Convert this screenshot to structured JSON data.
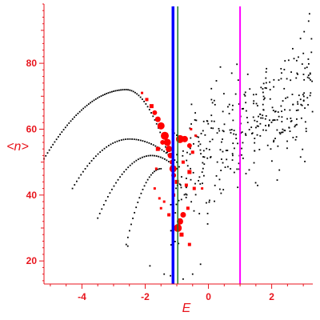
{
  "chart_data": {
    "type": "scatter",
    "title": "",
    "xlabel": "E",
    "ylabel": "<n>",
    "xlim": [
      -5.2,
      3.3
    ],
    "ylim": [
      13,
      98
    ],
    "xticks": [
      -4,
      -2,
      0,
      2
    ],
    "yticks": [
      20,
      40,
      60,
      80
    ],
    "grid": false,
    "axis_color": "#e8141c",
    "series": [
      {
        "style": "black-dots",
        "color": "#000000",
        "arcs": [
          {
            "x_from": -5.2,
            "x_to": -1.3,
            "peak_x": -2.6,
            "peak_y": 72,
            "start_y": 51,
            "end_y": 53,
            "n": 70
          },
          {
            "x_from": -4.3,
            "x_to": -1.0,
            "peak_x": -2.5,
            "peak_y": 57,
            "start_y": 42,
            "end_y": 50,
            "n": 50
          },
          {
            "x_from": -3.5,
            "x_to": -1.0,
            "peak_x": -1.8,
            "peak_y": 52,
            "start_y": 33,
            "end_y": 48,
            "n": 40
          },
          {
            "x_from": -2.6,
            "x_to": -1.5,
            "peak_x": -1.5,
            "peak_y": 48,
            "start_y": 25,
            "end_y": 48,
            "n": 22
          }
        ],
        "cloud": {
          "x_from": -1.2,
          "x_to": 3.3,
          "y_at_start": 44,
          "y_at_end": 75,
          "spread": 9,
          "n": 380
        }
      },
      {
        "style": "red-markers",
        "color": "#ff0000",
        "points": [
          {
            "x": -2.1,
            "y": 71,
            "s": 1.5
          },
          {
            "x": -1.95,
            "y": 69,
            "s": 2
          },
          {
            "x": -1.8,
            "y": 67,
            "s": 2.5
          },
          {
            "x": -1.7,
            "y": 65,
            "s": 3
          },
          {
            "x": -1.6,
            "y": 63,
            "s": 3.5
          },
          {
            "x": -1.5,
            "y": 61,
            "s": 4.5
          },
          {
            "x": -1.38,
            "y": 58,
            "s": 5
          },
          {
            "x": -1.3,
            "y": 56,
            "s": 4.5
          },
          {
            "x": -1.25,
            "y": 54,
            "s": 4
          },
          {
            "x": -1.2,
            "y": 52,
            "s": 3.5
          },
          {
            "x": -1.15,
            "y": 50,
            "s": 3
          },
          {
            "x": -1.12,
            "y": 48,
            "s": 4.5
          },
          {
            "x": -1.1,
            "y": 46,
            "s": 3
          },
          {
            "x": -1.0,
            "y": 44,
            "s": 2.5
          },
          {
            "x": -0.9,
            "y": 57,
            "s": 5
          },
          {
            "x": -0.75,
            "y": 57,
            "s": 4
          },
          {
            "x": -0.6,
            "y": 55,
            "s": 3
          },
          {
            "x": -0.5,
            "y": 53,
            "s": 2
          },
          {
            "x": -0.8,
            "y": 50,
            "s": 2
          },
          {
            "x": -0.6,
            "y": 47,
            "s": 2.5
          },
          {
            "x": -0.7,
            "y": 43,
            "s": 2
          },
          {
            "x": -0.45,
            "y": 42,
            "s": 2
          },
          {
            "x": -0.2,
            "y": 42,
            "s": 1.5
          },
          {
            "x": -0.65,
            "y": 36,
            "s": 2
          },
          {
            "x": -0.8,
            "y": 34,
            "s": 3.5
          },
          {
            "x": -0.9,
            "y": 32,
            "s": 4
          },
          {
            "x": -0.97,
            "y": 30,
            "s": 5
          },
          {
            "x": -0.85,
            "y": 28,
            "s": 2.5
          },
          {
            "x": -0.6,
            "y": 25,
            "s": 2
          },
          {
            "x": -1.65,
            "y": 48,
            "s": 1.5
          },
          {
            "x": -1.7,
            "y": 42,
            "s": 1.5
          },
          {
            "x": -1.55,
            "y": 39,
            "s": 1.5
          },
          {
            "x": -1.4,
            "y": 38,
            "s": 1.5
          },
          {
            "x": -1.5,
            "y": 36,
            "s": 1.5
          },
          {
            "x": -1.25,
            "y": 34,
            "s": 2
          },
          {
            "x": -1.1,
            "y": 40,
            "s": 2
          },
          {
            "x": -0.55,
            "y": 60,
            "s": 1.5
          },
          {
            "x": -0.4,
            "y": 58,
            "s": 1.5
          },
          {
            "x": -1.6,
            "y": 54,
            "s": 2.5
          },
          {
            "x": -1.45,
            "y": 56,
            "s": 3
          }
        ]
      }
    ],
    "vertical_lines": [
      {
        "x": -1.12,
        "color": "#0000ff",
        "width": 3.5
      },
      {
        "x": -0.97,
        "color": "#1f7a1f",
        "width": 1.5
      },
      {
        "x": 1.0,
        "color": "#ff00ff",
        "width": 2
      }
    ]
  }
}
